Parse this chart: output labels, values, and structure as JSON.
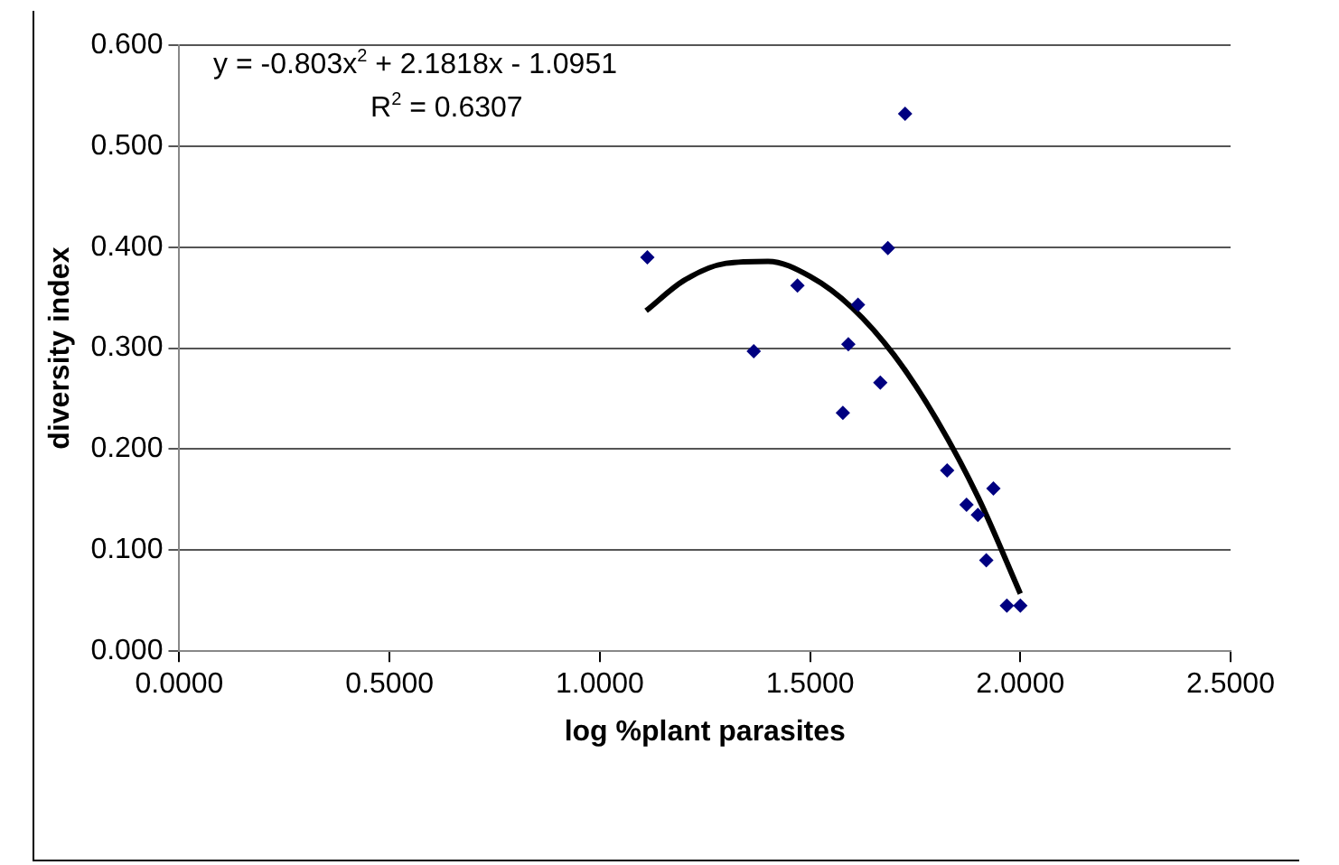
{
  "chart_data": {
    "type": "scatter",
    "xlabel": "log %plant parasites",
    "ylabel": "diversity index",
    "annotations": [
      "y = -0.803x$^{2}$ + 2.1818x - 1.0951",
      "R$^{2}$ = 0.6307"
    ],
    "series": [
      {
        "color": "#000080",
        "marker": "diamond",
        "x": [
          1.113,
          1.366,
          1.47,
          1.578,
          1.591,
          1.614,
          1.667,
          1.685,
          1.726,
          1.826,
          1.872,
          1.899,
          1.919,
          1.936,
          1.968,
          2.0
        ],
        "values": [
          0.39,
          0.297,
          0.362,
          0.236,
          0.304,
          0.343,
          0.266,
          0.399,
          0.532,
          0.179,
          0.145,
          0.135,
          0.09,
          0.161,
          0.045,
          0.045
        ]
      },
      {
        "type": "line",
        "color": "#000000",
        "marker": "none",
        "line_style": "solid",
        "x": [
          1.11,
          1.2,
          1.3,
          1.4,
          1.5,
          1.6,
          1.7,
          1.8,
          1.9,
          2.0
        ],
        "values": [
          0.337,
          0.367,
          0.384,
          0.386,
          0.371,
          0.34,
          0.293,
          0.23,
          0.152,
          0.057
        ]
      }
    ],
    "xlim": [
      0,
      2.5
    ],
    "xticks": [
      {
        "value": 0,
        "label": "0.0000"
      },
      {
        "value": 0.5,
        "label": "0.5000"
      },
      {
        "value": 1,
        "label": "1.0000"
      },
      {
        "value": 1.5,
        "label": "1.5000"
      },
      {
        "value": 2,
        "label": "2.0000"
      },
      {
        "value": 2.5,
        "label": "2.5000"
      }
    ],
    "ylim": [
      0,
      0.6
    ],
    "yticks": [
      {
        "value": 0,
        "label": "0.000"
      },
      {
        "value": 0.1,
        "label": "0.100"
      },
      {
        "value": 0.2,
        "label": "0.200"
      },
      {
        "value": 0.3,
        "label": "0.300"
      },
      {
        "value": 0.4,
        "label": "0.400"
      },
      {
        "value": 0.5,
        "label": "0.500"
      },
      {
        "value": 0.6,
        "label": "0.600"
      }
    ],
    "grid": "y",
    "legend": false
  }
}
